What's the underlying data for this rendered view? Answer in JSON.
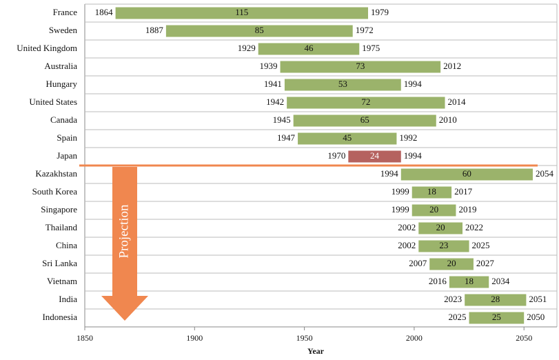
{
  "chart_data": {
    "type": "range-bar",
    "x_label": "Year",
    "annotation": "Projection",
    "categories": [
      "France",
      "Sweden",
      "United Kingdom",
      "Australia",
      "Hungary",
      "United States",
      "Canada",
      "Spain",
      "Japan",
      "Kazakhstan",
      "South Korea",
      "Singapore",
      "Thailand",
      "China",
      "Sri Lanka",
      "Vietnam",
      "India",
      "Indonesia"
    ],
    "start": [
      1864,
      1887,
      1929,
      1939,
      1941,
      1942,
      1945,
      1947,
      1970,
      1994,
      1999,
      1999,
      2002,
      2002,
      2007,
      2016,
      2023,
      2025
    ],
    "end": [
      1979,
      1972,
      1975,
      2012,
      1994,
      2014,
      2010,
      1992,
      1994,
      2054,
      2017,
      2019,
      2022,
      2025,
      2027,
      2034,
      2051,
      2050
    ],
    "durations": [
      115,
      85,
      46,
      73,
      53,
      72,
      65,
      45,
      24,
      60,
      18,
      20,
      20,
      23,
      20,
      18,
      28,
      25
    ],
    "colors": [
      "#9bb36b",
      "#9bb36b",
      "#9bb36b",
      "#9bb36b",
      "#9bb36b",
      "#9bb36b",
      "#9bb36b",
      "#9bb36b",
      "#b5625f",
      "#9bb36b",
      "#9bb36b",
      "#9bb36b",
      "#9bb36b",
      "#9bb36b",
      "#9bb36b",
      "#9bb36b",
      "#9bb36b",
      "#9bb36b"
    ],
    "xlim": [
      1850,
      2065
    ],
    "xticks": [
      1850,
      1900,
      1950,
      2000,
      2050
    ]
  }
}
